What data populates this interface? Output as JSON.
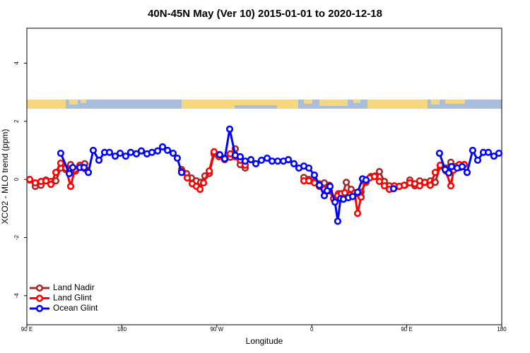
{
  "chart_data": {
    "type": "line",
    "title": "40N-45N May (Ver 10)   2015-01-01 to 2020-12-18",
    "xlabel": "Longitude",
    "ylabel": "XCO2 - MLO trend (ppm)",
    "xlim": [
      90,
      540
    ],
    "xticks": [
      {
        "value": 90,
        "label": "90 E"
      },
      {
        "value": 180,
        "label": "180"
      },
      {
        "value": 270,
        "label": "90 W"
      },
      {
        "value": 360,
        "label": "0"
      },
      {
        "value": 450,
        "label": "90 E"
      },
      {
        "value": 540,
        "label": "180"
      }
    ],
    "ylim": [
      -5,
      5.2
    ],
    "yticks": [
      -4,
      -2,
      0,
      2,
      4
    ],
    "legend": "bottom-left",
    "series": [
      {
        "name": "Land Nadir",
        "color": "#a52a2a",
        "x": [
          92.7,
          98.0,
          103.4,
          108.1,
          112.8,
          117.5,
          122.1,
          126.8,
          131.5,
          136.2,
          140.2,
          144.9,
          null,
          236.6,
          241.3,
          246.0,
          250.7,
          254.7,
          258.7,
          262.8,
          267.4,
          272.1,
          277.5,
          282.8,
          287.5,
          292.2,
          296.9,
          null,
          352.5,
          357.2,
          362.5,
          367.2,
          371.9,
          376.6,
          381.3,
          385.3,
          389.3,
          392.7,
          397.3,
          402.0,
          406.7,
          411.4,
          416.1,
          420.1,
          424.1,
          428.8,
          433.5,
          438.2,
          442.9,
          448.2,
          452.9,
          457.6,
          462.3,
          467.0,
          472.3,
          477.0,
          481.7,
          487.0,
          491.8,
          496.4,
          500.5,
          504.5
        ],
        "values": [
          -0.02,
          -0.24,
          -0.2,
          -0.02,
          -0.07,
          -0.05,
          0.39,
          0.34,
          0.51,
          0.29,
          0.44,
          0.54,
          null,
          0.34,
          0.2,
          0.05,
          -0.05,
          -0.1,
          0.12,
          0.2,
          0.88,
          0.85,
          0.68,
          0.76,
          1.05,
          0.51,
          0.39,
          null,
          0.07,
          0,
          -0.07,
          -0.15,
          -0.12,
          -0.2,
          -0.71,
          -0.49,
          -0.51,
          -0.1,
          -0.34,
          -0.49,
          -0.44,
          -0.1,
          0.1,
          0.12,
          0.27,
          -0.07,
          -0.22,
          -0.29,
          -0.24,
          -0.2,
          -0.02,
          -0.22,
          -0.05,
          -0.1,
          -0.05,
          -0.1,
          0.46,
          0.39,
          0.59,
          0.44,
          0.41,
          0.51
        ]
      },
      {
        "name": "Land Glint",
        "color": "#ff0000",
        "x": [
          92.7,
          98.0,
          103.4,
          108.1,
          112.8,
          117.5,
          122.1,
          126.8,
          131.5,
          135.5,
          140.2,
          144.9,
          null,
          237.3,
          242.0,
          246.7,
          250.7,
          254.1,
          257.4,
          262.8,
          267.4,
          272.1,
          277.5,
          282.8,
          287.5,
          292.2,
          296.9,
          null,
          352.5,
          357.2,
          362.5,
          367.2,
          371.9,
          376.6,
          380.6,
          384.6,
          388.0,
          391.3,
          396.0,
          400.7,
          403.4,
          406.7,
          410.1,
          414.8,
          419.4,
          424.1,
          428.8,
          433.5,
          438.2,
          442.9,
          447.6,
          452.9,
          457.6,
          462.3,
          467.0,
          472.3,
          477.0,
          481.7,
          487.0,
          491.8,
          494.4,
          499.8,
          504.5
        ],
        "values": [
          0,
          -0.12,
          -0.07,
          -0.05,
          -0.17,
          0.24,
          0.56,
          0.39,
          -0.24,
          0.34,
          0.49,
          0.37,
          null,
          0.27,
          0.05,
          -0.15,
          -0.24,
          -0.34,
          -0.12,
          0.29,
          0.95,
          0.78,
          0.73,
          0.88,
          0.78,
          0.66,
          0.49,
          null,
          -0.05,
          -0.05,
          -0.12,
          -0.24,
          -0.34,
          -0.39,
          -0.66,
          -0.56,
          -0.49,
          -0.46,
          -0.54,
          -0.46,
          -1.17,
          -0.61,
          -0.07,
          0.05,
          0.1,
          -0.07,
          -0.22,
          -0.34,
          -0.22,
          -0.24,
          -0.2,
          -0.12,
          -0.15,
          -0.22,
          -0.1,
          -0.2,
          0.24,
          0.49,
          0.29,
          -0.22,
          0.32,
          0.51,
          0.51
        ]
      },
      {
        "name": "Ocean Glint",
        "color": "#0000ff",
        "x": [
          122.1,
          130.2,
          133.5,
          140.2,
          144.2,
          148.3,
          152.9,
          158.3,
          163.7,
          168.3,
          173.7,
          178.4,
          183.7,
          188.4,
          193.8,
          198.5,
          203.8,
          208.5,
          213.9,
          218.6,
          223.3,
          228.6,
          232.6,
          236.6,
          null,
          272.8,
          277.5,
          282.2,
          287.5,
          292.2,
          296.9,
          302.3,
          307.0,
          312.3,
          317.7,
          322.4,
          327.7,
          333.1,
          337.8,
          343.1,
          347.8,
          352.5,
          357.2,
          362.5,
          367.2,
          371.9,
          374.6,
          377.3,
          382.0,
          384.6,
          387.3,
          390.0,
          394.7,
          398.7,
          403.4,
          408.1,
          411.4,
          null,
          437.5,
          null,
          481.0,
          486.4,
          489.8,
          492.4,
          497.8,
          502.5,
          507.2,
          512.5,
          517.2,
          522.6,
          527.3,
          532.6,
          537.3
        ],
        "values": [
          0.9,
          0.2,
          0.41,
          0.41,
          0.41,
          0.24,
          1.0,
          0.66,
          0.93,
          0.93,
          0.8,
          0.9,
          0.8,
          0.93,
          0.88,
          0.98,
          0.88,
          0.93,
          0.98,
          1.12,
          1.0,
          0.9,
          0.73,
          0.24,
          null,
          0.85,
          0.71,
          1.73,
          0.83,
          0.78,
          0.63,
          0.68,
          0.54,
          0.66,
          0.73,
          0.63,
          0.63,
          0.63,
          0.68,
          0.54,
          0.39,
          0.46,
          0.39,
          0.15,
          -0.2,
          -0.56,
          -0.39,
          -0.24,
          -0.78,
          -1.44,
          -0.66,
          -0.68,
          -0.63,
          -0.59,
          -0.44,
          0.02,
          -0.02,
          null,
          -0.32,
          null,
          0.9,
          0.34,
          0.22,
          0.44,
          0.39,
          0.44,
          0.24,
          1.0,
          0.66,
          0.93,
          0.93,
          0.8,
          0.9
        ]
      }
    ]
  }
}
